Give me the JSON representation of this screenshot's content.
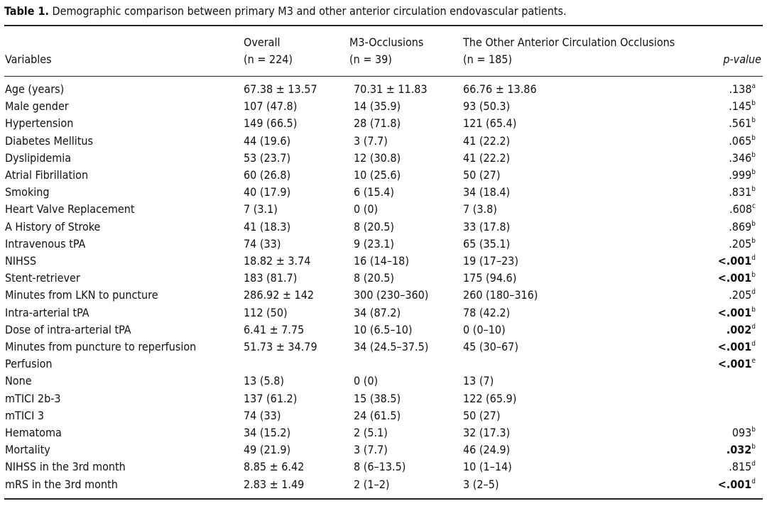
{
  "caption": {
    "label": "Table 1.",
    "text": "Demographic comparison between primary M3 and other anterior circulation endovascular patients."
  },
  "header": {
    "variables": "Variables",
    "overall": "Overall",
    "overall_n": "(n = 224)",
    "m3": "M3-Occlusions",
    "m3_n": "(n = 39)",
    "other": "The Other Anterior Circulation Occlusions",
    "other_n": "(n = 185)",
    "pvalue": "p-value"
  },
  "rows": [
    {
      "variable": "Age (years)",
      "overall": "67.38 ± 13.57",
      "m3": "70.31 ± 11.83",
      "other": "66.76 ± 13.86",
      "p": ".138",
      "sup": "a",
      "bold": false
    },
    {
      "variable": "Male gender",
      "overall": "107 (47.8)",
      "m3": "14 (35.9)",
      "other": "93 (50.3)",
      "p": ".145",
      "sup": "b",
      "bold": false
    },
    {
      "variable": "Hypertension",
      "overall": "149 (66.5)",
      "m3": "28 (71.8)",
      "other": "121 (65.4)",
      "p": ".561",
      "sup": "b",
      "bold": false
    },
    {
      "variable": "Diabetes Mellitus",
      "overall": "44 (19.6)",
      "m3": "3 (7.7)",
      "other": "41 (22.2)",
      "p": ".065",
      "sup": "b",
      "bold": false
    },
    {
      "variable": "Dyslipidemia",
      "overall": "53 (23.7)",
      "m3": "12 (30.8)",
      "other": "41 (22.2)",
      "p": ".346",
      "sup": "b",
      "bold": false
    },
    {
      "variable": "Atrial Fibrillation",
      "overall": "60 (26.8)",
      "m3": "10 (25.6)",
      "other": "50 (27)",
      "p": ".999",
      "sup": "b",
      "bold": false
    },
    {
      "variable": "Smoking",
      "overall": "40 (17.9)",
      "m3": "6 (15.4)",
      "other": "34 (18.4)",
      "p": ".831",
      "sup": "b",
      "bold": false
    },
    {
      "variable": "Heart Valve Replacement",
      "overall": "7 (3.1)",
      "m3": "0 (0)",
      "other": "7 (3.8)",
      "p": ".608",
      "sup": "c",
      "bold": false
    },
    {
      "variable": "A History of Stroke",
      "overall": "41 (18.3)",
      "m3": "8 (20.5)",
      "other": "33 (17.8)",
      "p": ".869",
      "sup": "b",
      "bold": false
    },
    {
      "variable": "Intravenous tPA",
      "overall": "74 (33)",
      "m3": "9 (23.1)",
      "other": "65 (35.1)",
      "p": ".205",
      "sup": "b",
      "bold": false
    },
    {
      "variable": "NIHSS",
      "overall": "18.82 ± 3.74",
      "m3": "16 (14–18)",
      "other": "19 (17–23)",
      "p": "<.001",
      "sup": "d",
      "bold": true
    },
    {
      "variable": "Stent-retriever",
      "overall": "183 (81.7)",
      "m3": "8 (20.5)",
      "other": "175 (94.6)",
      "p": "<.001",
      "sup": "b",
      "bold": true
    },
    {
      "variable": "Minutes from LKN to puncture",
      "overall": "286.92 ± 142",
      "m3": "300 (230–360)",
      "other": "260 (180–316)",
      "p": ".205",
      "sup": "d",
      "bold": false
    },
    {
      "variable": "Intra-arterial tPA",
      "overall": "112 (50)",
      "m3": "34 (87.2)",
      "other": "78 (42.2)",
      "p": "<.001",
      "sup": "b",
      "bold": true
    },
    {
      "variable": "Dose of intra-arterial tPA",
      "overall": "6.41 ± 7.75",
      "m3": "10 (6.5–10)",
      "other": "0 (0–10)",
      "p": ".002",
      "sup": "d",
      "bold": true
    },
    {
      "variable": "Minutes from puncture to reperfusion",
      "overall": "51.73 ± 34.79",
      "m3": "34 (24.5–37.5)",
      "other": "45 (30–67)",
      "p": "<.001",
      "sup": "d",
      "bold": true
    },
    {
      "variable": "Perfusion",
      "overall": "",
      "m3": "",
      "other": "",
      "p": "<.001",
      "sup": "e",
      "bold": true
    },
    {
      "variable": "None",
      "overall": "13 (5.8)",
      "m3": "0 (0)",
      "other": "13 (7)",
      "p": "",
      "sup": "",
      "bold": false
    },
    {
      "variable": "mTICI 2b-3",
      "overall": "137 (61.2)",
      "m3": "15 (38.5)",
      "other": "122 (65.9)",
      "p": "",
      "sup": "",
      "bold": false
    },
    {
      "variable": "mTICI 3",
      "overall": "74 (33)",
      "m3": "24 (61.5)",
      "other": "50 (27)",
      "p": "",
      "sup": "",
      "bold": false
    },
    {
      "variable": "Hematoma",
      "overall": "34 (15.2)",
      "m3": "2 (5.1)",
      "other": "32 (17.3)",
      "p": "093",
      "sup": "b",
      "bold": false
    },
    {
      "variable": "Mortality",
      "overall": "49 (21.9)",
      "m3": "3 (7.7)",
      "other": "46 (24.9)",
      "p": ".032",
      "sup": "b",
      "bold": true
    },
    {
      "variable": "NIHSS in the 3rd month",
      "overall": "8.85 ± 6.42",
      "m3": "8 (6–13.5)",
      "other": "10 (1–14)",
      "p": ".815",
      "sup": "d",
      "bold": false
    },
    {
      "variable": "mRS in the 3rd month",
      "overall": "2.83 ± 1.49",
      "m3": "2 (1–2)",
      "other": "3 (2–5)",
      "p": "<.001",
      "sup": "d",
      "bold": true
    }
  ]
}
